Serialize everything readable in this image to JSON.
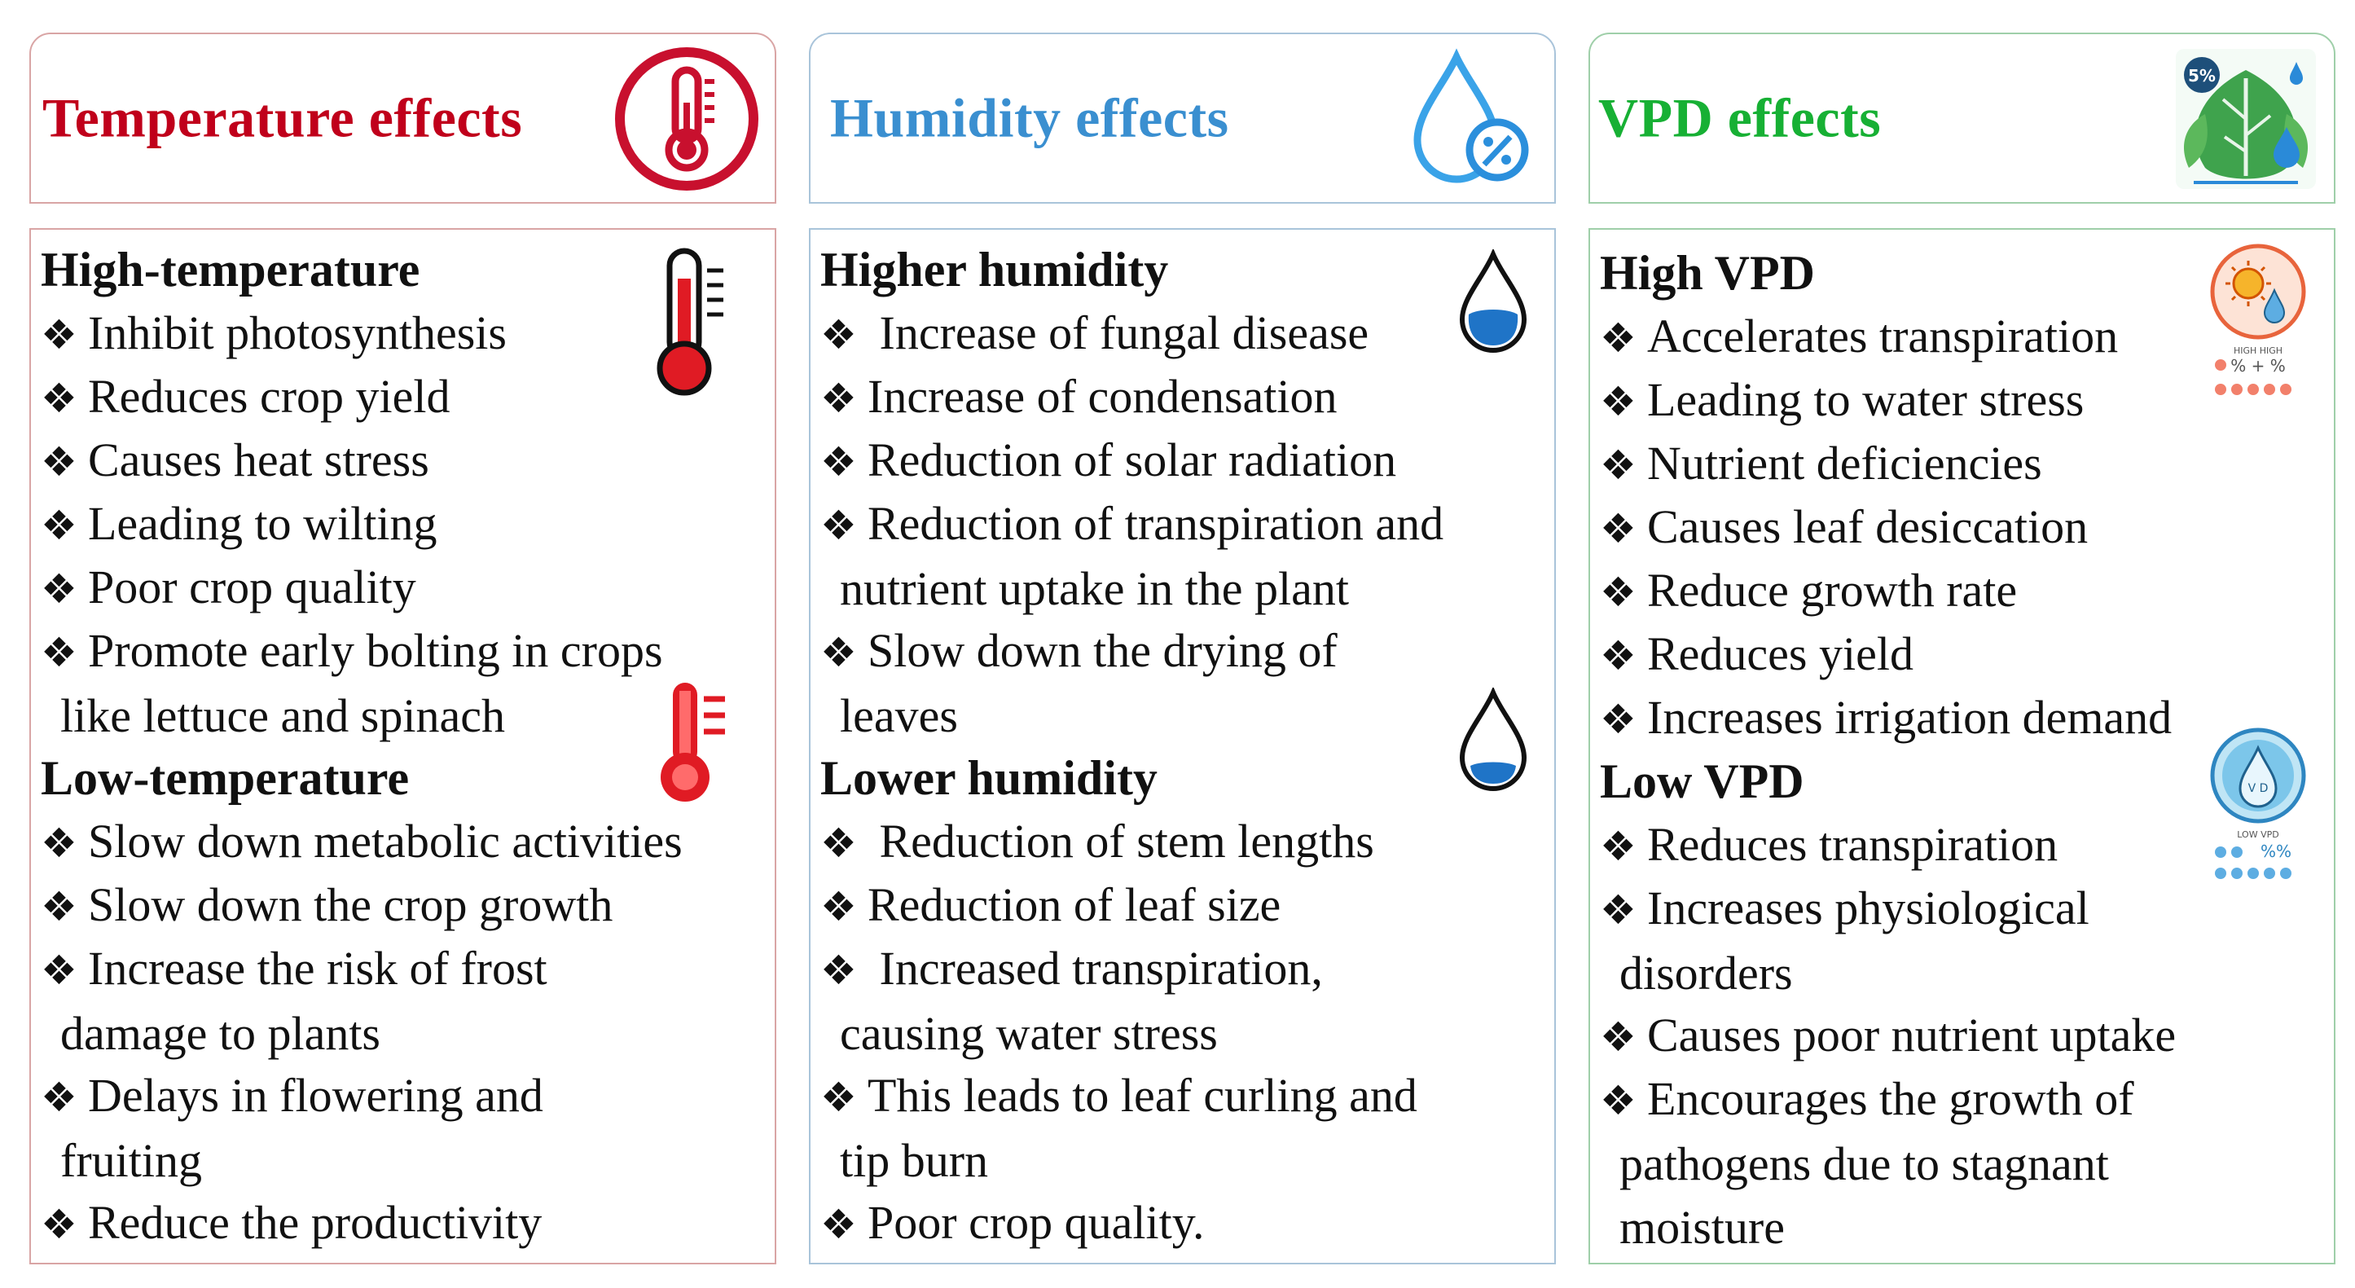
{
  "columns": [
    {
      "header": "Temperature effects",
      "sections": [
        {
          "title": "High-temperature",
          "items": [
            {
              "lines": [
                "Inhibit photosynthesis"
              ]
            },
            {
              "lines": [
                "Reduces crop yield"
              ]
            },
            {
              "lines": [
                "Causes heat stress"
              ]
            },
            {
              "lines": [
                "Leading to wilting"
              ]
            },
            {
              "lines": [
                "Poor crop quality"
              ]
            },
            {
              "lines": [
                "Promote early bolting in crops",
                "like lettuce and spinach"
              ]
            }
          ]
        },
        {
          "title": "Low-temperature",
          "items": [
            {
              "lines": [
                "Slow down metabolic activities"
              ]
            },
            {
              "lines": [
                "Slow down the crop growth"
              ]
            },
            {
              "lines": [
                "Increase the risk of frost",
                "damage to plants"
              ]
            },
            {
              "lines": [
                "Delays in flowering and",
                "fruiting"
              ]
            },
            {
              "lines": [
                "Reduce the productivity"
              ]
            }
          ]
        }
      ]
    },
    {
      "header": "Humidity effects",
      "sections": [
        {
          "title": "Higher humidity",
          "items": [
            {
              "lines": [
                " Increase of fungal disease"
              ]
            },
            {
              "lines": [
                "Increase of condensation"
              ]
            },
            {
              "lines": [
                "Reduction of solar radiation"
              ]
            },
            {
              "lines": [
                "Reduction of transpiration and",
                "nutrient uptake in the plant"
              ]
            },
            {
              "lines": [
                "Slow down the drying of",
                "leaves"
              ]
            }
          ]
        },
        {
          "title": "Lower humidity",
          "items": [
            {
              "lines": [
                " Reduction of stem lengths"
              ]
            },
            {
              "lines": [
                "Reduction of leaf size"
              ]
            },
            {
              "lines": [
                " Increased transpiration,",
                "causing water stress"
              ]
            },
            {
              "lines": [
                "This leads to leaf curling and",
                "tip burn"
              ]
            },
            {
              "lines": [
                "Poor crop quality."
              ]
            }
          ]
        }
      ]
    },
    {
      "header": "VPD effects",
      "header_icon_text": "5%",
      "sections": [
        {
          "title": "High VPD",
          "icon_text": "HIGH HIGH",
          "icon_text_2": "% + %",
          "items": [
            {
              "lines": [
                "Accelerates transpiration"
              ]
            },
            {
              "lines": [
                "Leading to water stress"
              ]
            },
            {
              "lines": [
                "Nutrient deficiencies"
              ]
            },
            {
              "lines": [
                "Causes leaf desiccation"
              ]
            },
            {
              "lines": [
                "Reduce growth rate"
              ]
            },
            {
              "lines": [
                "Reduces yield"
              ]
            },
            {
              "lines": [
                "Increases irrigation demand"
              ]
            }
          ]
        },
        {
          "title": "Low VPD",
          "icon_text": "LOW VPD",
          "icon_text_2": "%%",
          "icon_text_3": "V D",
          "items": [
            {
              "lines": [
                "Reduces transpiration"
              ]
            },
            {
              "lines": [
                "Increases physiological",
                "disorders"
              ]
            },
            {
              "lines": [
                "Causes poor nutrient uptake"
              ]
            },
            {
              "lines": [
                "Encourages the growth of",
                "pathogens due to stagnant",
                "moisture"
              ]
            }
          ]
        }
      ]
    }
  ],
  "bullet_glyph": "❖",
  "colors": {
    "temperature": "#c0001b",
    "humidity": "#3a8fd0",
    "vpd": "#17b034"
  }
}
